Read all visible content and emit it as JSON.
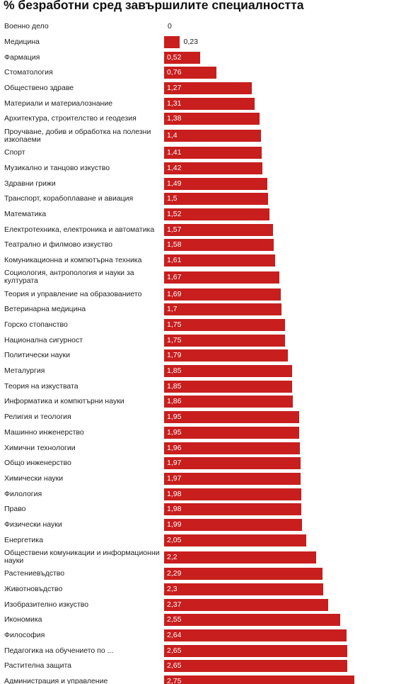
{
  "chart_data": {
    "type": "bar",
    "orientation": "horizontal",
    "title": "% безработни сред завършилите специалността",
    "color": "#c81e1e",
    "categories": [
      "Военно дело",
      "Медицина",
      "Фармация",
      "Стоматология",
      "Обществено здраве",
      "Материали и материалознание",
      "Архитектура, строителство и геодезия",
      "Проучване, добив и обработка на полезни изкопаеми",
      "Спорт",
      "Музикално и танцово изкуство",
      "Здравни грижи",
      "Транспорт, корабоплаване и авиация",
      "Математика",
      "Електротехника, електроника и автоматика",
      "Театрално и филмово изкуство",
      "Комуникационна и компютърна техника",
      "Социология, антропология и науки за културата",
      "Теория и управление на образованието",
      "Ветеринарна медицина",
      "Горско стопанство",
      "Национална сигурност",
      "Политически науки",
      "Металургия",
      "Теория на изкуствата",
      "Информатика и компютърни науки",
      "Религия и теология",
      "Машинно инженерство",
      "Химични технологии",
      "Общо инженерство",
      "Химически науки",
      "Филология",
      "Право",
      "Физически науки",
      "Енергетика",
      "Обществени комуникации и информационни науки",
      "Растениевъдство",
      "Животновъдство",
      "Изобразително изкуство",
      "Икономика",
      "Философия",
      "Педагогика на обучението по ...",
      "Растителна защита",
      "Администрация и управление"
    ],
    "values": [
      0,
      0.23,
      0.52,
      0.76,
      1.27,
      1.31,
      1.38,
      1.4,
      1.41,
      1.42,
      1.49,
      1.5,
      1.52,
      1.57,
      1.58,
      1.61,
      1.67,
      1.69,
      1.7,
      1.75,
      1.75,
      1.79,
      1.85,
      1.85,
      1.86,
      1.95,
      1.95,
      1.96,
      1.97,
      1.97,
      1.98,
      1.98,
      1.99,
      2.05,
      2.2,
      2.29,
      2.3,
      2.37,
      2.55,
      2.64,
      2.65,
      2.65,
      2.75
    ],
    "value_labels": [
      "0",
      "0,23",
      "0,52",
      "0,76",
      "1,27",
      "1,31",
      "1,38",
      "1,4",
      "1,41",
      "1,42",
      "1,49",
      "1,5",
      "1,52",
      "1,57",
      "1,58",
      "1,61",
      "1,67",
      "1,69",
      "1,7",
      "1,75",
      "1,75",
      "1,79",
      "1,85",
      "1,85",
      "1,86",
      "1,95",
      "1,95",
      "1,96",
      "1,97",
      "1,97",
      "1,98",
      "1,98",
      "1,99",
      "2,05",
      "2,2",
      "2,29",
      "2,3",
      "2,37",
      "2,55",
      "2,64",
      "2,65",
      "2,65",
      "2,75"
    ]
  }
}
